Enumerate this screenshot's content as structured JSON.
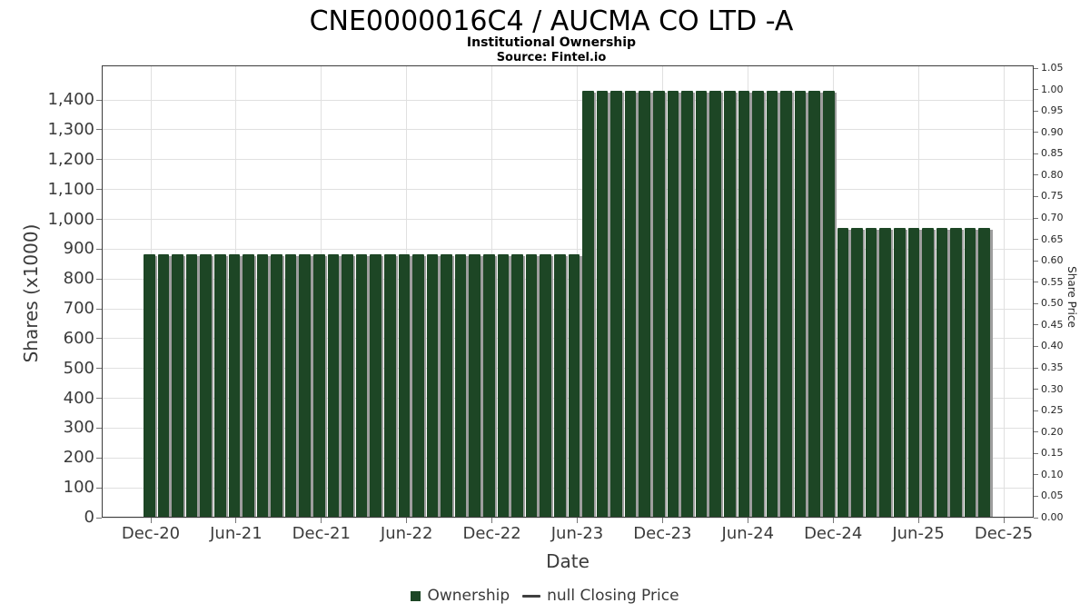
{
  "chart_data": {
    "type": "bar",
    "title": "CNE0000016C4 / AUCMA CO LTD -A",
    "subtitle": "Institutional Ownership",
    "source": "Source: Fintel.io",
    "xlabel": "Date",
    "ylabel_left": "Shares (x1000)",
    "ylabel_right": "Share Price",
    "bar_color": "#1d4625",
    "bar_shadow_color": "#9e9e9e",
    "grid_color": "#e0e0e0",
    "x_ticks": [
      "Dec-20",
      "Jun-21",
      "Dec-21",
      "Jun-22",
      "Dec-22",
      "Jun-23",
      "Dec-23",
      "Jun-24",
      "Dec-24",
      "Jun-25",
      "Dec-25"
    ],
    "y_left_ticks": [
      "0",
      "100",
      "200",
      "300",
      "400",
      "500",
      "600",
      "700",
      "800",
      "900",
      "1,000",
      "1,100",
      "1,200",
      "1,300",
      "1,400"
    ],
    "y_left_tick_values": [
      0,
      100,
      200,
      300,
      400,
      500,
      600,
      700,
      800,
      900,
      1000,
      1100,
      1200,
      1300,
      1400
    ],
    "y_left_range": [
      0,
      1516
    ],
    "y_right_ticks": [
      "0.00",
      "0.05",
      "0.10",
      "0.15",
      "0.20",
      "0.25",
      "0.30",
      "0.35",
      "0.40",
      "0.45",
      "0.50",
      "0.55",
      "0.60",
      "0.65",
      "0.70",
      "0.75",
      "0.80",
      "0.85",
      "0.90",
      "0.95",
      "1.00",
      "1.05"
    ],
    "y_right_tick_values": [
      0,
      0.05,
      0.1,
      0.15,
      0.2,
      0.25,
      0.3,
      0.35,
      0.4,
      0.45,
      0.5,
      0.55,
      0.6,
      0.65,
      0.7,
      0.75,
      0.8,
      0.85,
      0.9,
      0.95,
      1.0,
      1.05
    ],
    "y_right_range": [
      0,
      1.0565
    ],
    "values_unit": "shares_x1000",
    "values": [
      884,
      884,
      884,
      884,
      884,
      884,
      884,
      884,
      884,
      884,
      884,
      884,
      884,
      884,
      884,
      884,
      884,
      884,
      884,
      884,
      884,
      884,
      884,
      884,
      884,
      884,
      884,
      884,
      884,
      884,
      884,
      1430,
      1430,
      1430,
      1430,
      1430,
      1430,
      1430,
      1430,
      1430,
      1430,
      1430,
      1430,
      1430,
      1430,
      1430,
      1430,
      1430,
      1430,
      970,
      970,
      970,
      970,
      970,
      970,
      970,
      970,
      970,
      970,
      970
    ],
    "legend": [
      {
        "label": "Ownership",
        "marker": "square",
        "color": "#1d4625"
      },
      {
        "label": "null Closing Price",
        "marker": "line",
        "color": "#3f3f3f"
      }
    ]
  }
}
